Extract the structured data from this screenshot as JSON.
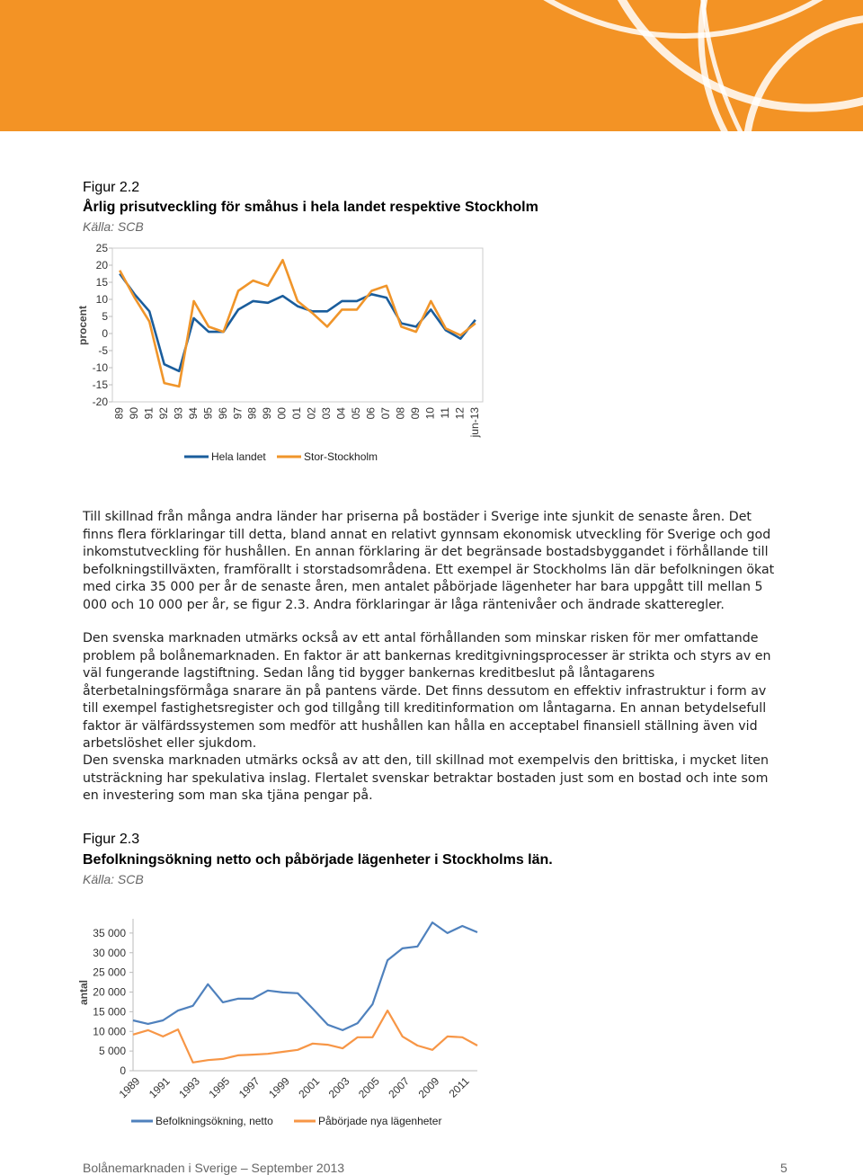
{
  "chart_data": [
    {
      "type": "line",
      "figure": "Figur 2.2",
      "title": "Årlig prisutveckling för småhus i hela landet respektive Stockholm",
      "source": "Källa: SCB",
      "y_label": "procent",
      "categories": [
        "89",
        "90",
        "91",
        "92",
        "93",
        "94",
        "95",
        "96",
        "97",
        "98",
        "99",
        "00",
        "01",
        "02",
        "03",
        "04",
        "05",
        "06",
        "07",
        "08",
        "09",
        "10",
        "11",
        "12",
        "jun-13"
      ],
      "series": [
        {
          "name": "Hela landet",
          "color": "#1a5d9c",
          "values": [
            17.5,
            11.5,
            6.5,
            -9,
            -11,
            4.5,
            0.5,
            0.5,
            7,
            9.5,
            9,
            11,
            8,
            6.5,
            6.5,
            9.5,
            9.5,
            11.5,
            10.5,
            3,
            2,
            7,
            1,
            -1.5,
            4
          ]
        },
        {
          "name": "Stor-Stockholm",
          "color": "#f0952a",
          "values": [
            18.5,
            10.5,
            3.5,
            -14.5,
            -15.5,
            9.5,
            2,
            0.5,
            12.5,
            15.5,
            14,
            21.5,
            9.5,
            6,
            2,
            7,
            7,
            12.5,
            14,
            2,
            0.5,
            9.5,
            1.5,
            -0.5,
            3
          ]
        }
      ],
      "ylim": [
        -20,
        25
      ],
      "yticks": [
        25,
        20,
        15,
        10,
        5,
        0,
        -5,
        -10,
        -15,
        -20
      ],
      "grid": false,
      "legend": "bottom"
    },
    {
      "type": "line",
      "figure": "Figur 2.3",
      "title": "Befolkningsökning netto och påbörjade lägenheter i Stockholms län.",
      "source": "Källa: SCB",
      "y_label": "antal",
      "categories": [
        "1989",
        null,
        "1991",
        null,
        "1993",
        null,
        "1995",
        null,
        "1997",
        null,
        "1999",
        null,
        "2001",
        null,
        "2003",
        null,
        "2005",
        null,
        "2007",
        null,
        "2009",
        null,
        "2011",
        null
      ],
      "series": [
        {
          "name": "Befolkningsökning, netto",
          "color": "#4f81bd",
          "values": [
            12800,
            11900,
            12800,
            15300,
            16500,
            22000,
            17400,
            18300,
            18300,
            20400,
            19900,
            19700,
            15800,
            11700,
            10300,
            12100,
            16900,
            28100,
            31100,
            31600,
            37700,
            35000,
            36800,
            35200
          ]
        },
        {
          "name": "Påbörjade nya lägenheter",
          "color": "#f79646",
          "values": [
            9200,
            10300,
            8700,
            10500,
            2100,
            2700,
            3000,
            3900,
            4100,
            4300,
            4800,
            5300,
            6900,
            6600,
            5700,
            8500,
            8500,
            15300,
            8700,
            6400,
            5300,
            8700,
            8500,
            6400
          ]
        }
      ],
      "ylim": [
        0,
        40000
      ],
      "yticks": [
        0,
        {
          "value": 5000,
          "label": "5 000"
        },
        {
          "value": 10000,
          "label": "10 000"
        },
        {
          "value": 15000,
          "label": "15 000"
        },
        {
          "value": 20000,
          "label": "20 000"
        },
        {
          "value": 25000,
          "label": "25 000"
        },
        {
          "value": 30000,
          "label": "30 000"
        },
        {
          "value": 35000,
          "label": "35 000"
        }
      ],
      "grid": false,
      "legend": "bottom"
    }
  ],
  "paragraphs": [
    "Till skillnad från många andra länder har priserna på bostäder i Sverige inte sjunkit de senaste åren. Det finns flera förklaringar till detta, bland annat en relativt gynnsam ekonomisk utveckling för Sverige och god inkomstutveckling för hushållen. En annan förklaring är det begränsade bostadsbyggandet i förhållande till befolkningstillväxten, framförallt i storstadsområdena. Ett exempel är Stockholms län där befolkningen ökat med cirka 35 000 per år de senaste åren, men antalet påbörjade lägenheter har bara uppgått till mellan 5 000 och 10 000 per år, se figur 2.3. Andra förklaringar är låga räntenivåer och ändrade skatteregler.",
    "Den svenska marknaden utmärks också av ett antal förhållanden som minskar risken för mer omfattande problem på bolånemarknaden. En faktor är att bankernas kreditgivningsprocesser är strikta och styrs av en väl fungerande lagstiftning. Sedan lång tid bygger bankernas kreditbeslut på låntagarens återbetalningsförmåga snarare än på pantens värde. Det finns dessutom en effektiv infrastruktur i form av till exempel fastighetsregister och god tillgång till kreditinformation om låntagarna. En annan betydelsefull faktor är välfärdssystemen som medför att hushållen kan hålla en acceptabel finansiell ställning även vid arbetslöshet eller sjukdom.",
    "Den svenska marknaden utmärks också av att den, till skillnad mot exempelvis den brittiska, i mycket liten utsträckning har spekulativa inslag. Flertalet svenskar betraktar bostaden just som en bostad och inte som en investering som man ska tjäna pengar på."
  ],
  "footer": {
    "text": "Bolånemarknaden i Sverige – September 2013",
    "page": "5"
  }
}
